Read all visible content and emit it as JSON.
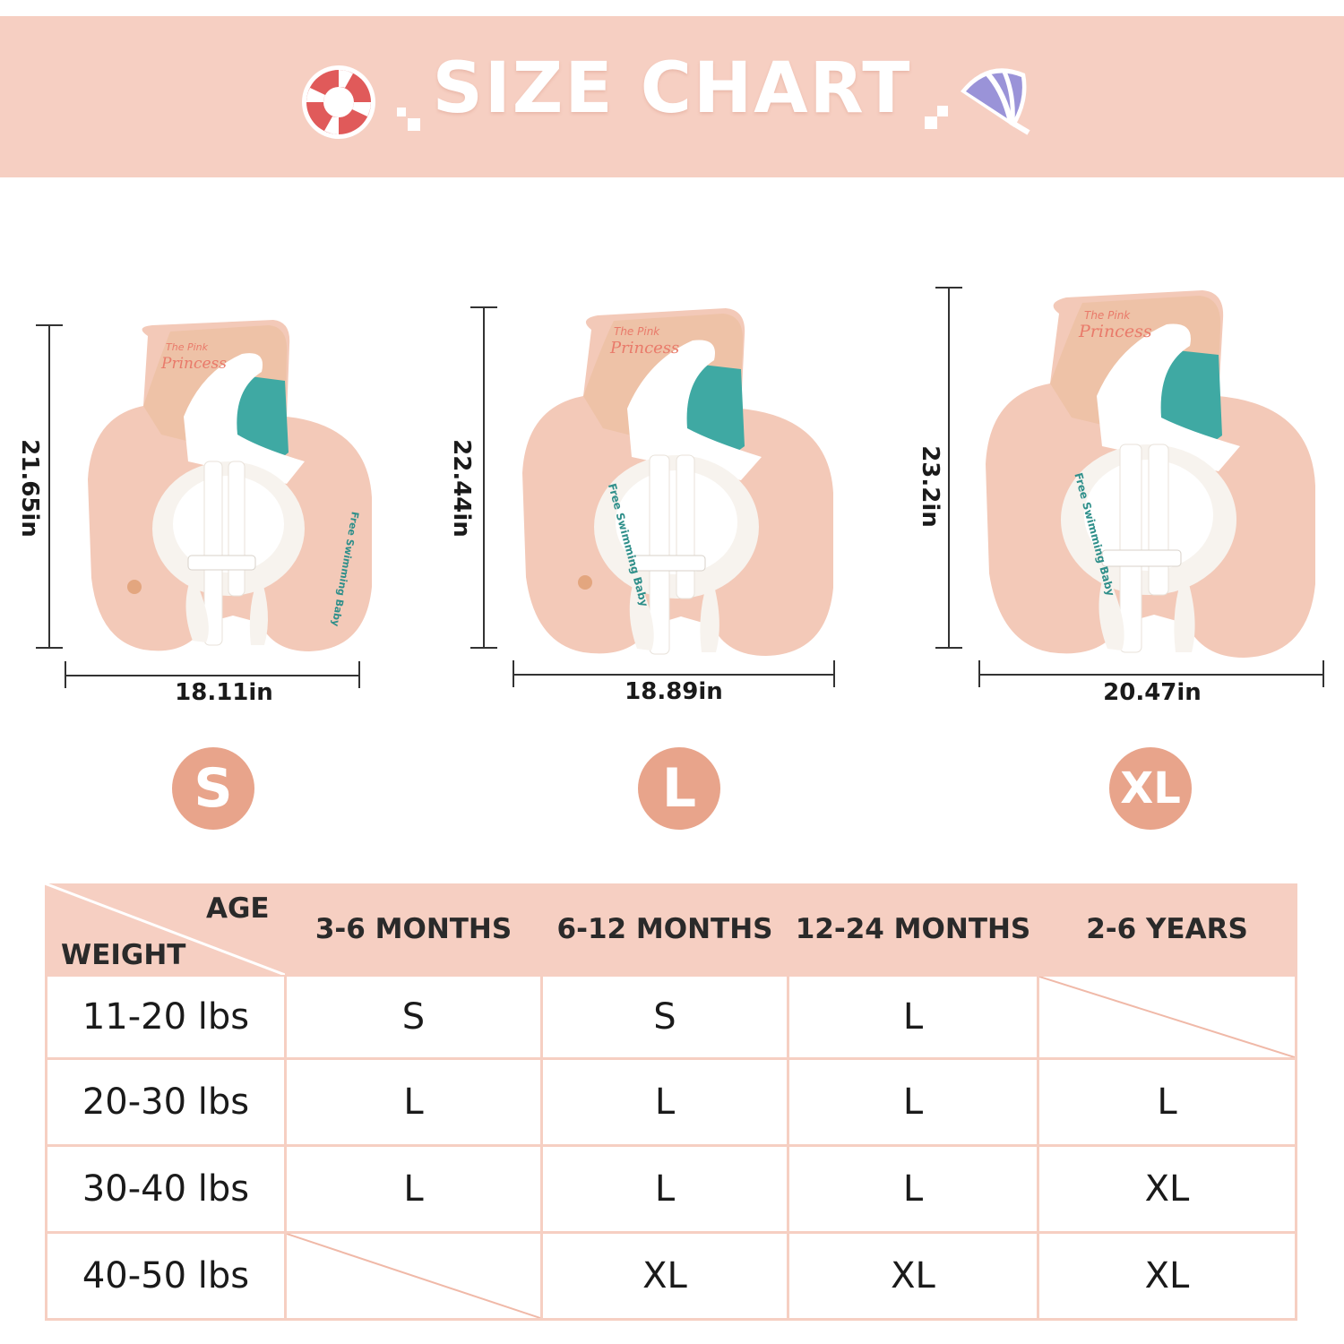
{
  "header": {
    "title": "SIZE CHART"
  },
  "products": [
    {
      "size": "S",
      "height": "21.65in",
      "width": "18.11in",
      "print_title_small": "The Pink",
      "print_title": "Princess",
      "print_side": "Free Swimming Baby"
    },
    {
      "size": "L",
      "height": "22.44in",
      "width": "18.89in",
      "print_title_small": "The Pink",
      "print_title": "Princess",
      "print_side": "Free Swimming Baby"
    },
    {
      "size": "XL",
      "height": "23.2in",
      "width": "20.47in",
      "print_title_small": "The Pink",
      "print_title": "Princess",
      "print_side": "Free Swimming Baby"
    }
  ],
  "table": {
    "corner_top": "AGE",
    "corner_bottom": "WEIGHT",
    "columns": [
      "3-6 MONTHS",
      "6-12 MONTHS",
      "12-24 MONTHS",
      "2-6 YEARS"
    ],
    "rows": [
      {
        "weight": "11-20 lbs",
        "values": [
          "S",
          "S",
          "L",
          ""
        ]
      },
      {
        "weight": "20-30 lbs",
        "values": [
          "L",
          "L",
          "L",
          "L"
        ]
      },
      {
        "weight": "30-40 lbs",
        "values": [
          "L",
          "L",
          "L",
          "XL"
        ]
      },
      {
        "weight": "40-50 lbs",
        "values": [
          "",
          "XL",
          "XL",
          "XL"
        ]
      }
    ]
  },
  "colors": {
    "banner": "#f6cfc2",
    "badge": "#e8a48b",
    "float_body": "#f3c9b8",
    "float_teal": "#3fa9a3",
    "seat": "#f7f3ee"
  },
  "icons": [
    "life-ring-icon",
    "umbrella-icon"
  ]
}
